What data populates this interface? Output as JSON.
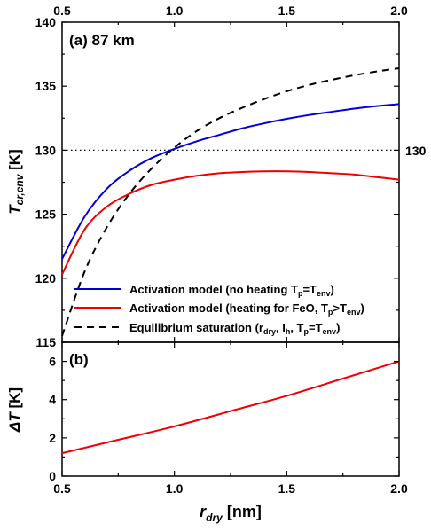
{
  "chart_data": [
    {
      "panel": "a",
      "type": "line",
      "title": "(a) 87 km",
      "xlim": [
        0.5,
        2.0
      ],
      "ylim": [
        115,
        140
      ],
      "x_ticks": [
        "0.5",
        "1.0",
        "1.5",
        "2.0"
      ],
      "y_ticks": [
        "115",
        "120",
        "125",
        "130",
        "135",
        "140"
      ],
      "top_axis_ticks": [
        "0.5",
        "1.0",
        "1.5",
        "2.0"
      ],
      "ylabel": {
        "main": "T",
        "sub": "cr,env",
        "unit": " [K]"
      },
      "reference_line": {
        "y": 130,
        "label": "130",
        "style": "dotted"
      },
      "legend_position": "bottom-right",
      "series": [
        {
          "name": "Activation model (no heating T_p=T_env)",
          "color": "#0000dd",
          "style": "solid",
          "x": [
            0.5,
            0.6,
            0.7,
            0.8,
            0.9,
            1.0,
            1.1,
            1.2,
            1.3,
            1.4,
            1.5,
            1.6,
            1.7,
            1.8,
            1.9,
            2.0
          ],
          "y": [
            121.5,
            124.8,
            127.0,
            128.4,
            129.4,
            130.1,
            130.7,
            131.2,
            131.7,
            132.1,
            132.45,
            132.75,
            133.0,
            133.25,
            133.45,
            133.6
          ]
        },
        {
          "name": "Activation model (heating for FeO, T_p>T_env)",
          "color": "#ee0000",
          "style": "solid",
          "x": [
            0.5,
            0.6,
            0.7,
            0.8,
            0.9,
            1.0,
            1.1,
            1.2,
            1.3,
            1.4,
            1.5,
            1.6,
            1.7,
            1.8,
            1.9,
            2.0
          ],
          "y": [
            120.3,
            123.8,
            125.6,
            126.6,
            127.3,
            127.7,
            128.0,
            128.2,
            128.3,
            128.35,
            128.35,
            128.3,
            128.2,
            128.1,
            127.9,
            127.7
          ]
        },
        {
          "name": "Equilibrium saturation (r_dry, I_h, T_p=T_env)",
          "color": "#000000",
          "style": "dashed",
          "x": [
            0.5,
            0.6,
            0.7,
            0.8,
            0.9,
            1.0,
            1.1,
            1.2,
            1.3,
            1.4,
            1.5,
            1.6,
            1.7,
            1.8,
            1.9,
            2.0
          ],
          "y": [
            115.5,
            120.5,
            124.0,
            126.6,
            128.6,
            130.2,
            131.5,
            132.5,
            133.3,
            134.0,
            134.6,
            135.1,
            135.5,
            135.85,
            136.15,
            136.4
          ]
        }
      ],
      "legend": [
        {
          "before": "Activation model (no heating T",
          "s1": "p",
          "mid": "=T",
          "s2": "env",
          "after": ")"
        },
        {
          "before": "Activation model (heating for FeO, T",
          "s1": "p",
          "mid": ">T",
          "s2": "env",
          "after": ")"
        },
        {
          "before": "Equilibrium saturation (r",
          "s1": "dry",
          "mid": ", I",
          "s2": "h",
          "mid2": ", T",
          "s3": "p",
          "mid3": "=T",
          "s4": "env",
          "after": ")"
        }
      ]
    },
    {
      "panel": "b",
      "type": "line",
      "title": "(b)",
      "xlim": [
        0.5,
        2.0
      ],
      "ylim": [
        0,
        7
      ],
      "x_ticks": [
        "0.5",
        "1.0",
        "1.5",
        "2.0"
      ],
      "y_ticks": [
        "0",
        "2",
        "4",
        "6"
      ],
      "xlabel": {
        "main": "r",
        "sub": "dry",
        "unit": " [nm]"
      },
      "ylabel": {
        "main": "ΔT",
        "unit": " [K]"
      },
      "series": [
        {
          "name": "ΔT",
          "color": "#ee0000",
          "style": "solid",
          "x": [
            0.5,
            0.75,
            1.0,
            1.25,
            1.5,
            1.75,
            2.0
          ],
          "y": [
            1.2,
            1.9,
            2.6,
            3.4,
            4.2,
            5.1,
            6.0
          ]
        }
      ]
    }
  ]
}
